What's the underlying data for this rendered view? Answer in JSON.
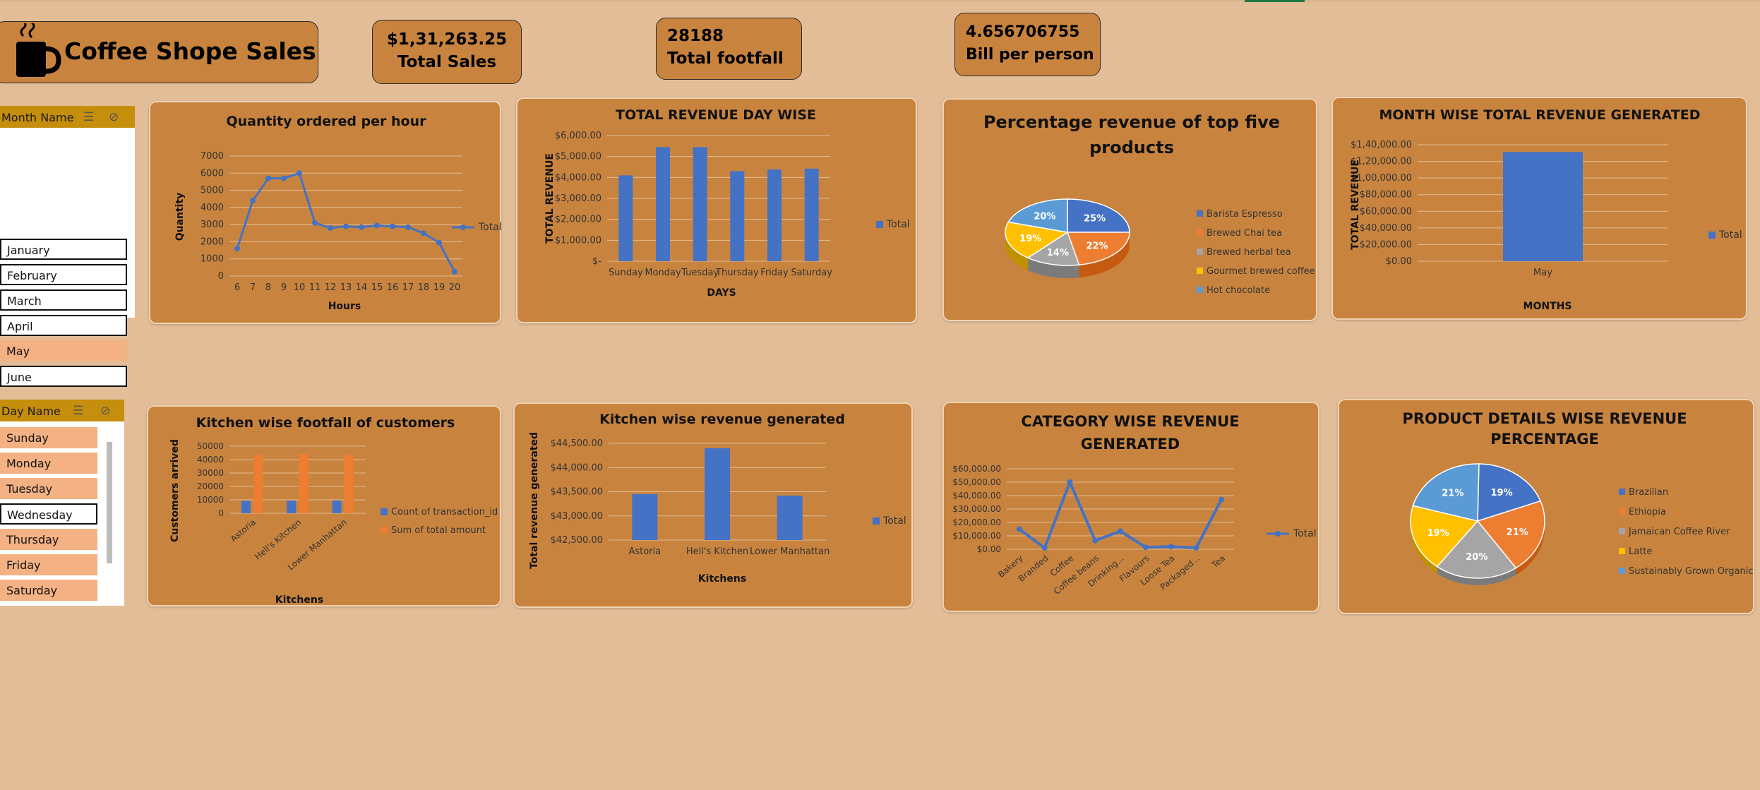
{
  "dashboard": {
    "title": "Coffee Shope Sales",
    "icons": {
      "logo": "coffee-mug-icon",
      "multiselect": "multi-select-icon",
      "clear_filter": "clear-filter-icon"
    },
    "colors": {
      "background": "#e2bd97",
      "panel": "#c8843f",
      "slicer_header": "#c68e0d",
      "slicer_selected": "#f4b183",
      "blue": "#4472c4",
      "orange": "#ed7d31",
      "gray": "#a5a5a5",
      "gold": "#ffc000",
      "lightblue": "#5b9bd5"
    }
  },
  "kpis": {
    "total_sales": {
      "value": "$1,31,263.25",
      "label": "Total Sales"
    },
    "total_footfall": {
      "value": "28188",
      "label": "Total footfall"
    },
    "bill_per_person": {
      "value": "4.656706755",
      "label": "Bill per person"
    }
  },
  "slicers": {
    "month": {
      "header": "Month Name",
      "items": [
        {
          "label": "January",
          "selected": false
        },
        {
          "label": "February",
          "selected": false
        },
        {
          "label": "March",
          "selected": false
        },
        {
          "label": "April",
          "selected": false
        },
        {
          "label": "May",
          "selected": true
        },
        {
          "label": "June",
          "selected": false
        }
      ]
    },
    "day": {
      "header": "Day Name",
      "items": [
        {
          "label": "Sunday",
          "selected": true
        },
        {
          "label": "Monday",
          "selected": true
        },
        {
          "label": "Tuesday",
          "selected": true
        },
        {
          "label": "Wednesday",
          "selected": false
        },
        {
          "label": "Thursday",
          "selected": true
        },
        {
          "label": "Friday",
          "selected": true
        },
        {
          "label": "Saturday",
          "selected": true
        }
      ]
    }
  },
  "chart_data": [
    {
      "id": "qty",
      "type": "line",
      "title": "Quantity ordered per hour",
      "xlabel": "Hours",
      "ylabel": "Quantity",
      "categories": [
        "6",
        "7",
        "8",
        "9",
        "10",
        "11",
        "12",
        "13",
        "14",
        "15",
        "16",
        "17",
        "18",
        "19",
        "20"
      ],
      "series": [
        {
          "name": "Total",
          "values": [
            1600,
            4400,
            5700,
            5700,
            6000,
            3100,
            2800,
            2900,
            2850,
            2950,
            2900,
            2850,
            2500,
            1950,
            250
          ]
        }
      ],
      "ylim": [
        0,
        7000
      ],
      "yticks": [
        "0",
        "1000",
        "2000",
        "3000",
        "4000",
        "5000",
        "6000",
        "7000"
      ],
      "legend": "right",
      "grid": true
    },
    {
      "id": "day",
      "type": "bar",
      "title": "TOTAL REVENUE DAY WISE",
      "xlabel": "DAYS",
      "ylabel": "TOTAL REVENUE",
      "categories": [
        "Sunday",
        "Monday",
        "Tuesday",
        "Thursday",
        "Friday",
        "Saturday"
      ],
      "series": [
        {
          "name": "Total",
          "values": [
            4100,
            5450,
            5450,
            4300,
            4380,
            4420
          ]
        }
      ],
      "ylim": [
        0,
        6000
      ],
      "yticks": [
        "$-",
        "$1,000.00",
        "$2,000.00",
        "$3,000.00",
        "$4,000.00",
        "$5,000.00",
        "$6,000.00"
      ],
      "legend": "right",
      "grid": true
    },
    {
      "id": "top5",
      "type": "pie",
      "title": "Percentage  revenue of top five products",
      "labels": [
        "Barista Espresso",
        "Brewed Chai tea",
        "Brewed herbal tea",
        "Gourmet brewed coffee",
        "Hot chocolate"
      ],
      "values": [
        25,
        22,
        14,
        19,
        20
      ],
      "display": [
        "25%",
        "22%",
        "14%",
        "19%",
        "20%"
      ],
      "legend": "right"
    },
    {
      "id": "month",
      "type": "bar",
      "title": "MONTH WISE TOTAL REVENUE GENERATED",
      "xlabel": "MONTHS",
      "ylabel": "TOTAL REVENUE",
      "categories": [
        "May"
      ],
      "series": [
        {
          "name": "Total",
          "values": [
            131263.25
          ]
        }
      ],
      "ylim": [
        0,
        140000
      ],
      "yticks": [
        "$0.00",
        "$20,000.00",
        "$40,000.00",
        "$60,000.00",
        "$80,000.00",
        "$1,00,000.00",
        "$1,20,000.00",
        "$1,40,000.00"
      ],
      "legend": "right",
      "grid": true
    },
    {
      "id": "footfall",
      "type": "bar",
      "title": "Kitchen wise footfall of customers",
      "xlabel": "Kitchens",
      "ylabel": "Customers arrived",
      "categories": [
        "Astoria",
        "Hell's Kitchen",
        "Lower Manhattan"
      ],
      "series": [
        {
          "name": "Count of transaction_id",
          "values": [
            9300,
            9400,
            9500
          ]
        },
        {
          "name": "Sum of total amount",
          "values": [
            43500,
            44300,
            43400
          ]
        }
      ],
      "ylim": [
        0,
        50000
      ],
      "yticks": [
        "0",
        "10000",
        "20000",
        "30000",
        "40000",
        "50000"
      ],
      "legend": "right",
      "grid": true
    },
    {
      "id": "kitrev",
      "type": "bar",
      "title": "Kitchen wise revenue generated",
      "xlabel": "Kitchens",
      "ylabel": "Total revenue generated",
      "categories": [
        "Astoria",
        "Hell's Kitchen",
        "Lower Manhattan"
      ],
      "series": [
        {
          "name": "Total",
          "values": [
            43450,
            44400,
            43420
          ]
        }
      ],
      "ylim": [
        42500,
        44500
      ],
      "yticks": [
        "$42,500.00",
        "$43,000.00",
        "$43,500.00",
        "$44,000.00",
        "$44,500.00"
      ],
      "legend": "right",
      "grid": true
    },
    {
      "id": "category",
      "type": "line",
      "title": "CATEGORY WISE REVENUE GENERATED",
      "categories": [
        "Bakery",
        "Branded",
        "Coffee",
        "Coffee beans",
        "Drinking...",
        "Flavours",
        "Loose Tea",
        "Packaged...",
        "Tea"
      ],
      "series": [
        {
          "name": "Total",
          "values": [
            15000,
            1000,
            50000,
            6500,
            13500,
            1500,
            2000,
            1000,
            37000
          ]
        }
      ],
      "ylim": [
        0,
        60000
      ],
      "yticks": [
        "$0.00",
        "$10,000.00",
        "$20,000.00",
        "$30,000.00",
        "$40,000.00",
        "$50,000.00",
        "$60,000.00"
      ],
      "legend": "right",
      "grid": true
    },
    {
      "id": "product",
      "type": "pie",
      "title": "PRODUCT DETAILS WISE REVENUE PERCENTAGE",
      "labels": [
        "Brazilian",
        "Ethiopia",
        "Jamaican Coffee River",
        "Latte",
        "Sustainably Grown Organic"
      ],
      "values": [
        19,
        21,
        20,
        19,
        21
      ],
      "display": [
        "19%",
        "21%",
        "20%",
        "19%",
        "21%"
      ],
      "legend": "right"
    }
  ]
}
